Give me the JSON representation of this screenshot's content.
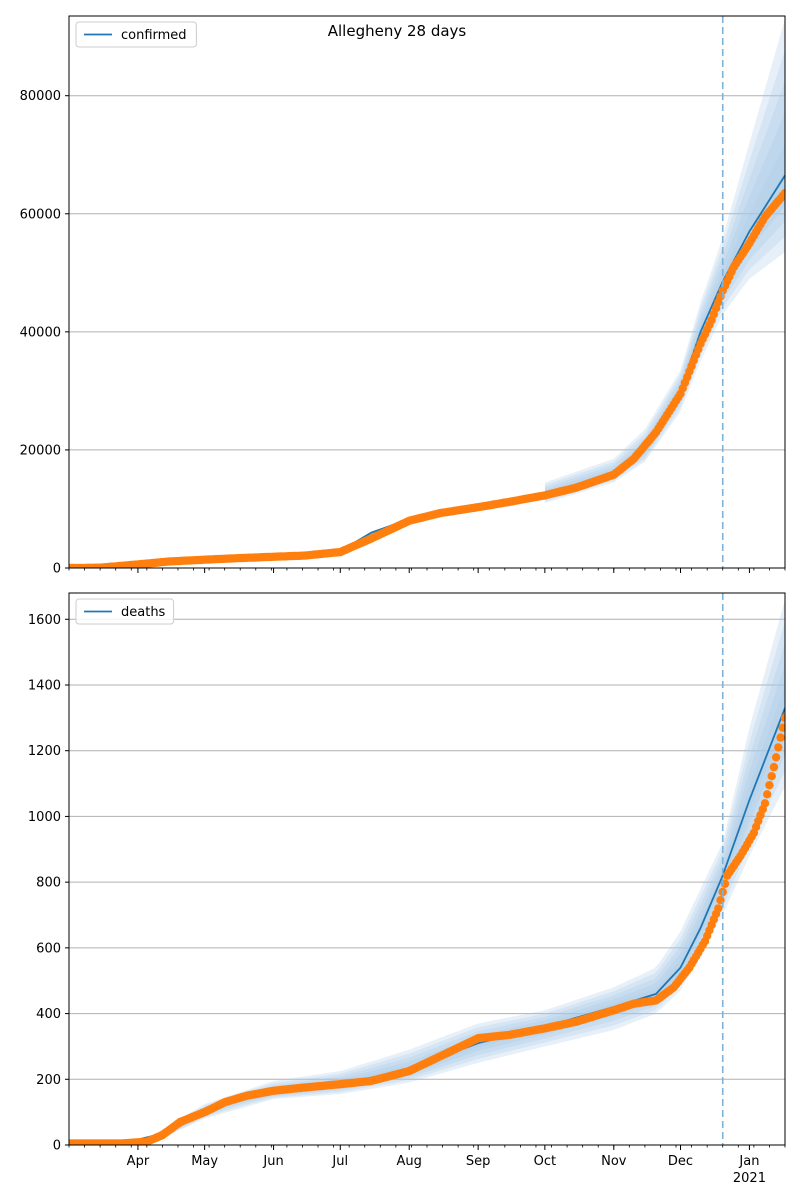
{
  "title": "Allegheny 28 days",
  "colors": {
    "fit": "#1f77b4",
    "observed": "#ff7f0e",
    "band": "#aac8e6",
    "grid": "#b0b0b0",
    "vline": "#7fb2d9"
  },
  "x_axis": {
    "start_date": "2020-03-01",
    "end_date": "2021-01-17",
    "tick_labels": [
      {
        "date": "2020-04-01",
        "label": "Apr"
      },
      {
        "date": "2020-05-01",
        "label": "May"
      },
      {
        "date": "2020-06-01",
        "label": "Jun"
      },
      {
        "date": "2020-07-01",
        "label": "Jul"
      },
      {
        "date": "2020-08-01",
        "label": "Aug"
      },
      {
        "date": "2020-09-01",
        "label": "Sep"
      },
      {
        "date": "2020-10-01",
        "label": "Oct"
      },
      {
        "date": "2020-11-01",
        "label": "Nov"
      },
      {
        "date": "2020-12-01",
        "label": "Dec"
      },
      {
        "date": "2021-01-01",
        "label": "Jan"
      }
    ],
    "year_label": "2021",
    "forecast_start": "2020-12-20"
  },
  "chart_data": [
    {
      "type": "line",
      "legend": "confirmed",
      "legend_position": "top-left",
      "ylim": [
        0,
        93500
      ],
      "yticks": [
        0,
        20000,
        40000,
        60000,
        80000
      ],
      "grid": true,
      "fit_line": {
        "x": [
          "2020-03-01",
          "2020-04-01",
          "2020-05-01",
          "2020-06-01",
          "2020-07-01",
          "2020-07-15",
          "2020-08-01",
          "2020-09-01",
          "2020-10-01",
          "2020-11-01",
          "2020-11-15",
          "2020-12-01",
          "2020-12-10",
          "2020-12-20",
          "2021-01-01",
          "2021-01-17"
        ],
        "y": [
          100,
          500,
          1400,
          1800,
          2900,
          6000,
          8300,
          10500,
          12300,
          16000,
          20000,
          30000,
          40000,
          48500,
          57000,
          66500
        ]
      },
      "band_outer": {
        "x": [
          "2020-10-01",
          "2020-11-01",
          "2020-11-15",
          "2020-12-01",
          "2020-12-10",
          "2020-12-20",
          "2021-01-01",
          "2021-01-17"
        ],
        "upper": [
          14500,
          18500,
          23500,
          33500,
          45000,
          56000,
          72000,
          93000
        ],
        "lower": [
          11000,
          14500,
          18000,
          26500,
          35000,
          43000,
          49000,
          53500
        ]
      },
      "observed": {
        "x": [
          "2020-03-01",
          "2020-03-15",
          "2020-04-01",
          "2020-04-15",
          "2020-05-01",
          "2020-05-15",
          "2020-06-01",
          "2020-06-15",
          "2020-07-01",
          "2020-07-15",
          "2020-08-01",
          "2020-08-15",
          "2020-09-01",
          "2020-09-15",
          "2020-10-01",
          "2020-10-15",
          "2020-11-01",
          "2020-11-10",
          "2020-11-20",
          "2020-12-01",
          "2020-12-10",
          "2020-12-15",
          "2020-12-20",
          "2020-12-25",
          "2021-01-01",
          "2021-01-08",
          "2021-01-17"
        ],
        "y": [
          0,
          50,
          600,
          1100,
          1400,
          1650,
          1900,
          2100,
          2700,
          5000,
          8000,
          9300,
          10300,
          11200,
          12300,
          13600,
          15800,
          18500,
          23000,
          29500,
          38000,
          42000,
          47000,
          51000,
          55000,
          59500,
          63500
        ]
      }
    },
    {
      "type": "line",
      "legend": "deaths",
      "legend_position": "top-left",
      "ylim": [
        0,
        1680
      ],
      "yticks": [
        0,
        200,
        400,
        600,
        800,
        1000,
        1200,
        1400,
        1600
      ],
      "grid": true,
      "fit_line": {
        "x": [
          "2020-03-01",
          "2020-03-25",
          "2020-04-15",
          "2020-05-01",
          "2020-05-15",
          "2020-06-01",
          "2020-07-01",
          "2020-08-01",
          "2020-09-01",
          "2020-10-01",
          "2020-11-01",
          "2020-11-20",
          "2020-12-01",
          "2020-12-10",
          "2020-12-20",
          "2021-01-01",
          "2021-01-17"
        ],
        "y": [
          0,
          5,
          40,
          100,
          140,
          160,
          185,
          230,
          310,
          360,
          420,
          460,
          540,
          660,
          820,
          1050,
          1330
        ]
      },
      "band_outer": {
        "x": [
          "2020-04-10",
          "2020-05-01",
          "2020-06-01",
          "2020-07-01",
          "2020-08-01",
          "2020-09-01",
          "2020-10-01",
          "2020-11-01",
          "2020-11-20",
          "2020-12-01",
          "2020-12-10",
          "2020-12-20",
          "2021-01-01",
          "2021-01-17"
        ],
        "upper": [
          40,
          125,
          195,
          225,
          290,
          370,
          410,
          480,
          540,
          650,
          780,
          920,
          1270,
          1660
        ],
        "lower": [
          15,
          80,
          140,
          155,
          190,
          250,
          300,
          350,
          400,
          470,
          580,
          700,
          880,
          1090
        ]
      },
      "observed": {
        "x": [
          "2020-03-01",
          "2020-03-25",
          "2020-04-05",
          "2020-04-12",
          "2020-04-20",
          "2020-05-01",
          "2020-05-10",
          "2020-05-20",
          "2020-06-01",
          "2020-06-15",
          "2020-07-01",
          "2020-07-15",
          "2020-08-01",
          "2020-08-15",
          "2020-09-01",
          "2020-09-15",
          "2020-10-01",
          "2020-10-15",
          "2020-11-01",
          "2020-11-10",
          "2020-11-20",
          "2020-11-28",
          "2020-12-05",
          "2020-12-12",
          "2020-12-18",
          "2020-12-22",
          "2020-12-28",
          "2021-01-03",
          "2021-01-08",
          "2021-01-12",
          "2021-01-17"
        ],
        "y": [
          5,
          5,
          10,
          30,
          70,
          100,
          130,
          150,
          165,
          175,
          185,
          195,
          225,
          270,
          325,
          335,
          355,
          375,
          410,
          430,
          440,
          480,
          540,
          620,
          720,
          820,
          880,
          950,
          1040,
          1150,
          1300
        ]
      }
    }
  ]
}
